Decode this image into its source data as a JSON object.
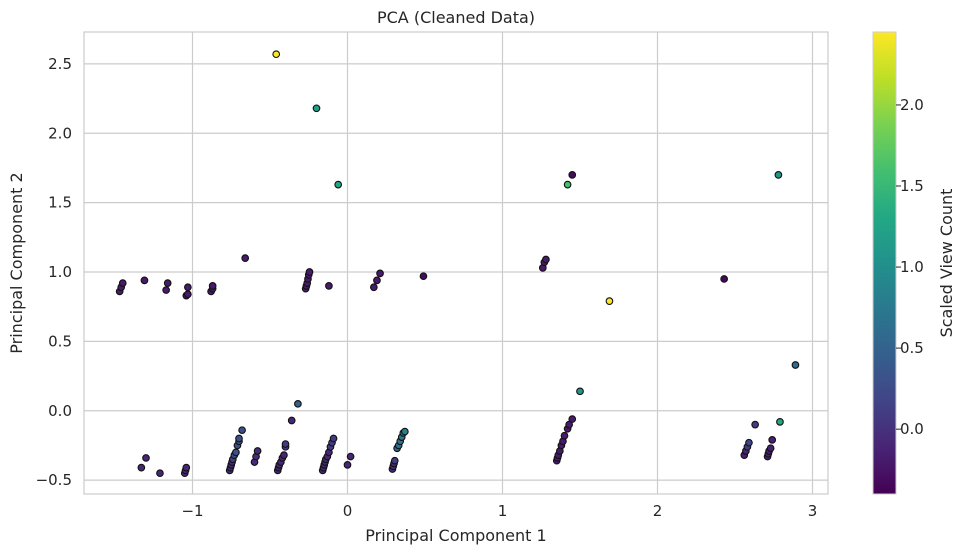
{
  "chart_data": {
    "type": "scatter",
    "title": "PCA (Cleaned Data)",
    "xlabel": "Principal Component 1",
    "ylabel": "Principal Component 2",
    "xlim": [
      -1.7,
      3.1
    ],
    "ylim": [
      -0.6,
      2.73
    ],
    "xticks": [
      -1,
      0,
      1,
      2,
      3
    ],
    "xtick_labels": [
      "−1",
      "0",
      "1",
      "2",
      "3"
    ],
    "yticks": [
      -0.5,
      0.0,
      0.5,
      1.0,
      1.5,
      2.0,
      2.5
    ],
    "ytick_labels": [
      "−0.5",
      "0.0",
      "0.5",
      "1.0",
      "1.5",
      "2.0",
      "2.5"
    ],
    "grid": true,
    "colorbar": {
      "label": "Scaled View Count",
      "colormap": "viridis",
      "vmin": -0.4,
      "vmax": 2.45,
      "ticks": [
        0.0,
        0.5,
        1.0,
        1.5,
        2.0
      ],
      "tick_labels": [
        "0.0",
        "0.5",
        "1.0",
        "1.5",
        "2.0"
      ]
    },
    "points": [
      {
        "x": -0.46,
        "y": 2.57,
        "c": 2.45
      },
      {
        "x": -0.2,
        "y": 2.18,
        "c": 1.2
      },
      {
        "x": -0.06,
        "y": 1.63,
        "c": 1.3
      },
      {
        "x": 1.42,
        "y": 1.63,
        "c": 1.6
      },
      {
        "x": 1.45,
        "y": 1.7,
        "c": -0.3
      },
      {
        "x": 2.78,
        "y": 1.7,
        "c": 1.1
      },
      {
        "x": 1.69,
        "y": 0.79,
        "c": 2.45
      },
      {
        "x": 2.43,
        "y": 0.95,
        "c": -0.35
      },
      {
        "x": 2.89,
        "y": 0.33,
        "c": 0.6
      },
      {
        "x": 1.5,
        "y": 0.14,
        "c": 1.1
      },
      {
        "x": 2.79,
        "y": -0.08,
        "c": 1.3
      },
      {
        "x": 0.49,
        "y": 0.97,
        "c": -0.3
      },
      {
        "x": -0.66,
        "y": 1.1,
        "c": -0.2
      },
      {
        "x": -1.47,
        "y": 0.86,
        "c": -0.2
      },
      {
        "x": -1.46,
        "y": 0.89,
        "c": -0.2
      },
      {
        "x": -1.45,
        "y": 0.92,
        "c": -0.2
      },
      {
        "x": -1.31,
        "y": 0.94,
        "c": -0.2
      },
      {
        "x": -1.17,
        "y": 0.87,
        "c": -0.2
      },
      {
        "x": -1.16,
        "y": 0.92,
        "c": -0.2
      },
      {
        "x": -1.04,
        "y": 0.83,
        "c": -0.2
      },
      {
        "x": -1.03,
        "y": 0.84,
        "c": -0.2
      },
      {
        "x": -1.03,
        "y": 0.89,
        "c": -0.2
      },
      {
        "x": -0.88,
        "y": 0.86,
        "c": -0.2
      },
      {
        "x": -0.87,
        "y": 0.88,
        "c": -0.2
      },
      {
        "x": -0.87,
        "y": 0.9,
        "c": -0.2
      },
      {
        "x": -0.27,
        "y": 0.88,
        "c": -0.2
      },
      {
        "x": -0.265,
        "y": 0.9,
        "c": -0.2
      },
      {
        "x": -0.26,
        "y": 0.92,
        "c": -0.2
      },
      {
        "x": -0.255,
        "y": 0.95,
        "c": -0.2
      },
      {
        "x": -0.25,
        "y": 0.98,
        "c": -0.2
      },
      {
        "x": -0.245,
        "y": 1.0,
        "c": -0.2
      },
      {
        "x": -0.12,
        "y": 0.9,
        "c": -0.2
      },
      {
        "x": 0.17,
        "y": 0.89,
        "c": -0.2
      },
      {
        "x": 0.19,
        "y": 0.94,
        "c": -0.2
      },
      {
        "x": 0.21,
        "y": 0.99,
        "c": -0.2
      },
      {
        "x": 1.26,
        "y": 1.03,
        "c": -0.2
      },
      {
        "x": 1.27,
        "y": 1.07,
        "c": -0.2
      },
      {
        "x": 1.28,
        "y": 1.09,
        "c": -0.2
      },
      {
        "x": -0.32,
        "y": 0.05,
        "c": 0.5
      },
      {
        "x": -0.36,
        "y": -0.07,
        "c": -0.1
      },
      {
        "x": -1.3,
        "y": -0.34,
        "c": -0.1
      },
      {
        "x": -1.33,
        "y": -0.41,
        "c": -0.1
      },
      {
        "x": -1.21,
        "y": -0.45,
        "c": -0.1
      },
      {
        "x": -1.05,
        "y": -0.45,
        "c": -0.1
      },
      {
        "x": -1.045,
        "y": -0.43,
        "c": -0.1
      },
      {
        "x": -1.04,
        "y": -0.41,
        "c": -0.1
      },
      {
        "x": -0.76,
        "y": -0.43,
        "c": -0.05
      },
      {
        "x": -0.755,
        "y": -0.41,
        "c": -0.05
      },
      {
        "x": -0.75,
        "y": -0.39,
        "c": -0.05
      },
      {
        "x": -0.745,
        "y": -0.37,
        "c": -0.05
      },
      {
        "x": -0.74,
        "y": -0.35,
        "c": 0.1
      },
      {
        "x": -0.73,
        "y": -0.32,
        "c": 0.3
      },
      {
        "x": -0.72,
        "y": -0.3,
        "c": 0.3
      },
      {
        "x": -0.71,
        "y": -0.25,
        "c": 0.3
      },
      {
        "x": -0.7,
        "y": -0.22,
        "c": 0.3
      },
      {
        "x": -0.7,
        "y": -0.2,
        "c": 0.3
      },
      {
        "x": -0.68,
        "y": -0.14,
        "c": 0.3
      },
      {
        "x": -0.6,
        "y": -0.37,
        "c": -0.05
      },
      {
        "x": -0.59,
        "y": -0.33,
        "c": -0.05
      },
      {
        "x": -0.58,
        "y": -0.29,
        "c": -0.05
      },
      {
        "x": -0.45,
        "y": -0.43,
        "c": -0.1
      },
      {
        "x": -0.445,
        "y": -0.41,
        "c": -0.1
      },
      {
        "x": -0.44,
        "y": -0.39,
        "c": -0.1
      },
      {
        "x": -0.43,
        "y": -0.37,
        "c": -0.1
      },
      {
        "x": -0.42,
        "y": -0.34,
        "c": -0.1
      },
      {
        "x": -0.41,
        "y": -0.32,
        "c": -0.1
      },
      {
        "x": -0.4,
        "y": -0.26,
        "c": 0.1
      },
      {
        "x": -0.4,
        "y": -0.24,
        "c": 0.1
      },
      {
        "x": -0.16,
        "y": -0.43,
        "c": -0.1
      },
      {
        "x": -0.155,
        "y": -0.41,
        "c": -0.1
      },
      {
        "x": -0.15,
        "y": -0.39,
        "c": -0.1
      },
      {
        "x": -0.145,
        "y": -0.37,
        "c": -0.1
      },
      {
        "x": -0.14,
        "y": -0.35,
        "c": -0.1
      },
      {
        "x": -0.13,
        "y": -0.33,
        "c": -0.1
      },
      {
        "x": -0.12,
        "y": -0.3,
        "c": -0.1
      },
      {
        "x": -0.11,
        "y": -0.26,
        "c": 0.1
      },
      {
        "x": -0.1,
        "y": -0.23,
        "c": 0.1
      },
      {
        "x": -0.09,
        "y": -0.2,
        "c": 0.1
      },
      {
        "x": 0.0,
        "y": -0.39,
        "c": -0.1
      },
      {
        "x": 0.02,
        "y": -0.33,
        "c": -0.1
      },
      {
        "x": 0.29,
        "y": -0.42,
        "c": -0.05
      },
      {
        "x": 0.295,
        "y": -0.4,
        "c": -0.05
      },
      {
        "x": 0.3,
        "y": -0.38,
        "c": -0.05
      },
      {
        "x": 0.305,
        "y": -0.36,
        "c": 0.1
      },
      {
        "x": 0.32,
        "y": -0.27,
        "c": 0.6
      },
      {
        "x": 0.33,
        "y": -0.25,
        "c": 0.6
      },
      {
        "x": 0.34,
        "y": -0.22,
        "c": 0.7
      },
      {
        "x": 0.35,
        "y": -0.19,
        "c": 0.7
      },
      {
        "x": 0.36,
        "y": -0.16,
        "c": 0.8
      },
      {
        "x": 0.37,
        "y": -0.15,
        "c": 0.8
      },
      {
        "x": 1.35,
        "y": -0.36,
        "c": -0.2
      },
      {
        "x": 1.355,
        "y": -0.34,
        "c": -0.2
      },
      {
        "x": 1.36,
        "y": -0.32,
        "c": -0.2
      },
      {
        "x": 1.37,
        "y": -0.29,
        "c": -0.2
      },
      {
        "x": 1.38,
        "y": -0.25,
        "c": -0.2
      },
      {
        "x": 1.39,
        "y": -0.22,
        "c": -0.2
      },
      {
        "x": 1.4,
        "y": -0.18,
        "c": -0.2
      },
      {
        "x": 1.42,
        "y": -0.13,
        "c": -0.2
      },
      {
        "x": 1.43,
        "y": -0.1,
        "c": -0.2
      },
      {
        "x": 1.45,
        "y": -0.06,
        "c": -0.2
      },
      {
        "x": 2.56,
        "y": -0.32,
        "c": -0.15
      },
      {
        "x": 2.57,
        "y": -0.29,
        "c": -0.1
      },
      {
        "x": 2.58,
        "y": -0.26,
        "c": 0.1
      },
      {
        "x": 2.59,
        "y": -0.23,
        "c": 0.2
      },
      {
        "x": 2.63,
        "y": -0.1,
        "c": 0.1
      },
      {
        "x": 2.71,
        "y": -0.33,
        "c": -0.15
      },
      {
        "x": 2.715,
        "y": -0.31,
        "c": -0.15
      },
      {
        "x": 2.72,
        "y": -0.29,
        "c": -0.15
      },
      {
        "x": 2.73,
        "y": -0.27,
        "c": -0.15
      },
      {
        "x": 2.74,
        "y": -0.21,
        "c": -0.15
      }
    ]
  }
}
